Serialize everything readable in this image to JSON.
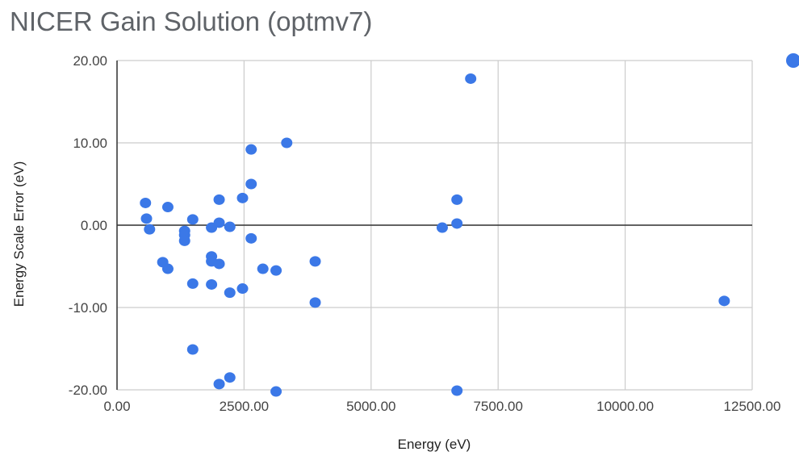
{
  "chart_data": {
    "type": "scatter",
    "title": "NICER Gain Solution (optmv7)",
    "xlabel": "Energy (eV)",
    "ylabel": "Energy Scale Error (eV)",
    "xlim": [
      0,
      12500
    ],
    "ylim": [
      -20,
      20
    ],
    "x_ticks": [
      0,
      2500,
      5000,
      7500,
      10000,
      12500
    ],
    "x_tick_labels": [
      "0.00",
      "2500.00",
      "5000.00",
      "7500.00",
      "10000.00",
      "12500.00"
    ],
    "y_ticks": [
      -20,
      -10,
      0,
      10,
      20
    ],
    "y_tick_labels": [
      "-20.00",
      "-10.00",
      "0.00",
      "10.00",
      "20.00"
    ],
    "grid": true,
    "legend": "right",
    "point_color": "#3b78e7",
    "series": [
      {
        "points": [
          [
            560,
            2.7
          ],
          [
            580,
            0.8
          ],
          [
            640,
            -0.5
          ],
          [
            900,
            -4.5
          ],
          [
            1000,
            -5.3
          ],
          [
            1000,
            2.2
          ],
          [
            1330,
            -0.7
          ],
          [
            1330,
            -1.2
          ],
          [
            1330,
            -1.9
          ],
          [
            1490,
            0.7
          ],
          [
            1490,
            -7.1
          ],
          [
            1490,
            -15.1
          ],
          [
            1860,
            -0.3
          ],
          [
            1860,
            -3.8
          ],
          [
            1860,
            -4.4
          ],
          [
            1860,
            -7.2
          ],
          [
            2010,
            3.1
          ],
          [
            2010,
            0.3
          ],
          [
            2010,
            -4.7
          ],
          [
            2010,
            -19.3
          ],
          [
            2220,
            -0.2
          ],
          [
            2220,
            -8.2
          ],
          [
            2220,
            -18.5
          ],
          [
            2470,
            3.3
          ],
          [
            2470,
            -7.7
          ],
          [
            2640,
            9.2
          ],
          [
            2640,
            5.0
          ],
          [
            2640,
            -1.6
          ],
          [
            2870,
            -5.3
          ],
          [
            3130,
            -5.5
          ],
          [
            3130,
            -20.2
          ],
          [
            3340,
            10.0
          ],
          [
            3900,
            -4.4
          ],
          [
            3900,
            -9.4
          ],
          [
            6400,
            -0.3
          ],
          [
            6690,
            3.1
          ],
          [
            6690,
            0.2
          ],
          [
            6690,
            -20.1
          ],
          [
            6960,
            17.8
          ],
          [
            11950,
            -9.2
          ]
        ]
      }
    ]
  }
}
